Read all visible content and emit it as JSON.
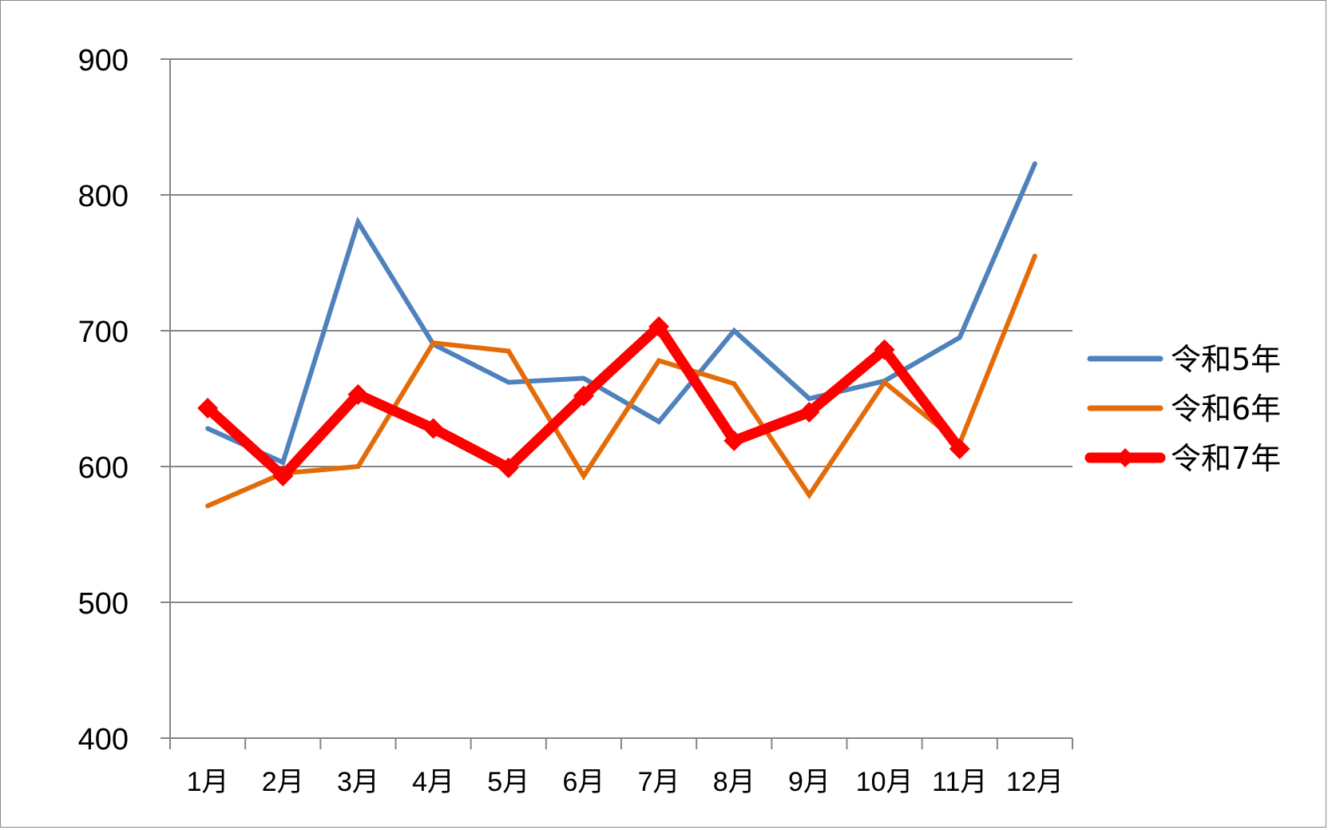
{
  "chart_data": {
    "type": "line",
    "categories": [
      "1月",
      "2月",
      "3月",
      "4月",
      "5月",
      "6月",
      "7月",
      "8月",
      "9月",
      "10月",
      "11月",
      "12月"
    ],
    "series": [
      {
        "name": "令和5年",
        "color": "#4f81bd",
        "values": [
          628,
          603,
          780,
          690,
          662,
          665,
          633,
          700,
          650,
          663,
          695,
          823
        ]
      },
      {
        "name": "令和6年",
        "color": "#e36c09",
        "values": [
          571,
          595,
          600,
          691,
          685,
          593,
          678,
          661,
          579,
          662,
          617,
          755
        ]
      },
      {
        "name": "令和7年",
        "color": "#ff0000",
        "marker": "diamond",
        "values": [
          643,
          593,
          653,
          628,
          599,
          652,
          703,
          619,
          640,
          686,
          613,
          null
        ]
      }
    ],
    "y_ticks": [
      "400",
      "500",
      "600",
      "700",
      "800",
      "900"
    ],
    "ylim": [
      400,
      900
    ],
    "grid": true,
    "legend_position": "right"
  }
}
